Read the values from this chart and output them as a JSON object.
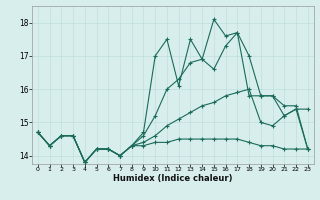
{
  "xlabel": "Humidex (Indice chaleur)",
  "bg_color": "#d7eeec",
  "grid_color": "#c0dedd",
  "line_color": "#1a6b5a",
  "x_values": [
    0,
    1,
    2,
    3,
    4,
    5,
    6,
    7,
    8,
    9,
    10,
    11,
    12,
    13,
    14,
    15,
    16,
    17,
    18,
    19,
    20,
    21,
    22,
    23
  ],
  "line1": [
    14.7,
    14.3,
    14.6,
    14.6,
    13.8,
    14.2,
    14.2,
    14.0,
    14.3,
    14.3,
    14.4,
    14.4,
    14.5,
    14.5,
    14.5,
    14.5,
    14.5,
    14.5,
    14.4,
    14.3,
    14.3,
    14.2,
    14.2,
    14.2
  ],
  "line2": [
    14.7,
    14.3,
    14.6,
    14.6,
    13.8,
    14.2,
    14.2,
    14.0,
    14.3,
    14.4,
    14.6,
    14.9,
    15.1,
    15.3,
    15.5,
    15.6,
    15.8,
    15.9,
    16.0,
    15.0,
    14.9,
    15.2,
    15.4,
    15.4
  ],
  "line3": [
    14.7,
    14.3,
    14.6,
    14.6,
    13.8,
    14.2,
    14.2,
    14.0,
    14.3,
    14.6,
    15.2,
    16.0,
    16.3,
    16.8,
    16.9,
    16.6,
    17.3,
    17.7,
    15.8,
    15.8,
    15.8,
    15.5,
    15.5,
    14.2
  ],
  "line4": [
    14.7,
    14.3,
    14.6,
    14.6,
    13.8,
    14.2,
    14.2,
    14.0,
    14.3,
    14.7,
    17.0,
    17.5,
    16.1,
    17.5,
    16.9,
    18.1,
    17.6,
    17.7,
    17.0,
    15.8,
    15.8,
    15.2,
    15.4,
    14.2
  ],
  "ylim": [
    13.75,
    18.5
  ],
  "xlim": [
    -0.5,
    23.5
  ],
  "yticks": [
    14,
    15,
    16,
    17,
    18
  ]
}
